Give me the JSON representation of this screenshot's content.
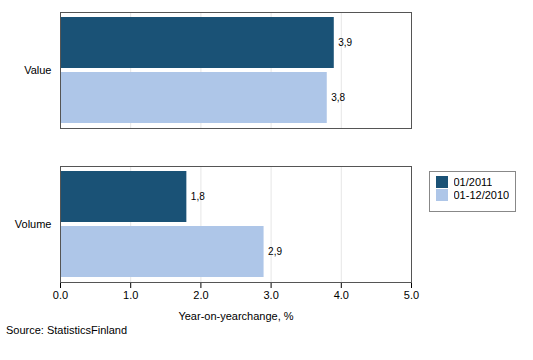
{
  "chart_data": {
    "type": "bar",
    "orientation": "horizontal",
    "categories": [
      "Volume",
      "Value"
    ],
    "series": [
      {
        "name": "01/2011",
        "color": "#1a5276",
        "values": [
          1.8,
          3.9
        ],
        "value_labels": [
          "1,8",
          "3,9"
        ]
      },
      {
        "name": "01-12/2010",
        "color": "#aec6e8",
        "values": [
          2.9,
          3.8
        ],
        "value_labels": [
          "2,9",
          "3,8"
        ]
      }
    ],
    "xlabel": "Year-on-yearchange, %",
    "xlim": [
      0,
      5
    ],
    "xticks": [
      0,
      1,
      2,
      3,
      4,
      5
    ],
    "grid": true,
    "data_labels": true,
    "legend": "right",
    "caption": "Source: StatisticsFinland"
  }
}
